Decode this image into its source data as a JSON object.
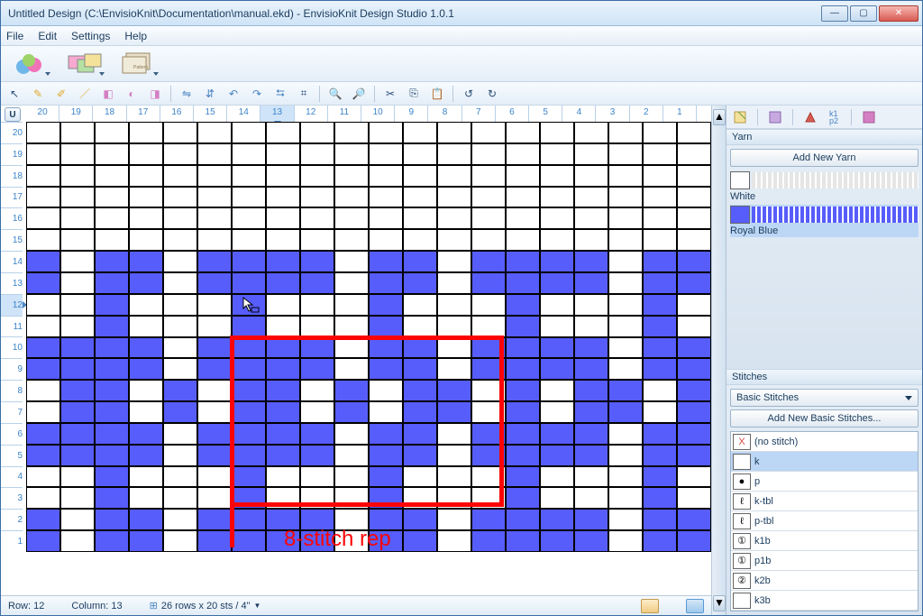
{
  "window": {
    "title": "Untitled Design (C:\\EnvisioKnit\\Documentation\\manual.ekd) - EnvisioKnit Design Studio 1.0.1",
    "chrome_gradient_top": "#eaf3fc",
    "chrome_gradient_bottom": "#cfe4f7",
    "close_color": "#d85b52"
  },
  "menu": {
    "items": [
      "File",
      "Edit",
      "Settings",
      "Help"
    ]
  },
  "status": {
    "row_label": "Row:",
    "row_value": 12,
    "col_label": "Column:",
    "col_value": 13,
    "gauge": "26 rows x 20 sts / 4\""
  },
  "ruler": {
    "top_numbers": [
      20,
      19,
      18,
      17,
      16,
      15,
      14,
      13,
      12,
      11,
      10,
      9,
      8,
      7,
      6,
      5,
      4,
      3,
      2,
      1
    ],
    "top_selected": 13,
    "left_numbers": [
      20,
      19,
      18,
      17,
      16,
      15,
      14,
      13,
      12,
      11,
      10,
      9,
      8,
      7,
      6,
      5,
      4,
      3,
      2,
      1
    ],
    "left_selected": 12
  },
  "grid": {
    "cols": 20,
    "rows": 20,
    "cell_white": "#ffffff",
    "cell_blue": "#575dfa",
    "border": "#000000",
    "pattern_rows": [
      "....................",
      "....................",
      "....................",
      "....................",
      "....................",
      "....................",
      "B.BB.BBBB.BB.BBBB.BB",
      "B.BB.BBBB.BB.BBBB.BB",
      "..B...B...B...B...B.",
      "..B...B...B...B...B.",
      "BBBB.BBBB.BB.BBBB.BB",
      "BBBB.BBBB.BB.BBBB.BB",
      ".BB.B.BB.B.BB.B.BB.B",
      ".BB.B.BB.B.BB.B.BB.B",
      "BBBB.BBBB.BB.BBBB.BB",
      "BBBB.BBBB.BB.BBBB.BB",
      "..B...B...B...B...B.",
      "..B...B...B...B...B.",
      "B.BB.BBBB.BB.BBBB.BB",
      "B.BB.BBBB.BB.BBBB.BB"
    ],
    "repeat_box": {
      "color": "#fc0404",
      "stroke": 5,
      "col_start": 7,
      "col_end": 14,
      "row_start": 11,
      "row_end": 18
    },
    "repeat_label": "8-stitch rep",
    "repeat_label_fontsize": 24,
    "cursor_row": 9,
    "cursor_col": 7
  },
  "yarn_panel": {
    "header": "Yarn",
    "add_button": "Add New Yarn",
    "items": [
      {
        "name": "White",
        "hex": "#ffffff",
        "wave": "#e5e5e5"
      },
      {
        "name": "Royal Blue",
        "hex": "#575dfa",
        "wave": "#575dfa"
      }
    ],
    "selected_index": 1
  },
  "stitch_panel": {
    "header": "Stitches",
    "dropdown": "Basic Stitches",
    "add_button": "Add New Basic Stitches...",
    "items": [
      {
        "symbol": "X",
        "label": "(no stitch)",
        "symbol_color": "#d94b42"
      },
      {
        "symbol": "",
        "label": "k",
        "symbol_color": "#000"
      },
      {
        "symbol": "●",
        "label": "p",
        "symbol_color": "#000"
      },
      {
        "symbol": "ℓ",
        "label": "k-tbl",
        "symbol_color": "#000"
      },
      {
        "symbol": "ℓ",
        "label": "p-tbl",
        "symbol_color": "#000"
      },
      {
        "symbol": "①",
        "label": "k1b",
        "symbol_color": "#000"
      },
      {
        "symbol": "①",
        "label": "p1b",
        "symbol_color": "#000"
      },
      {
        "symbol": "②",
        "label": "k2b",
        "symbol_color": "#000"
      },
      {
        "symbol": "  ",
        "label": "k3b",
        "symbol_color": "#000"
      }
    ],
    "selected_index": 1
  }
}
